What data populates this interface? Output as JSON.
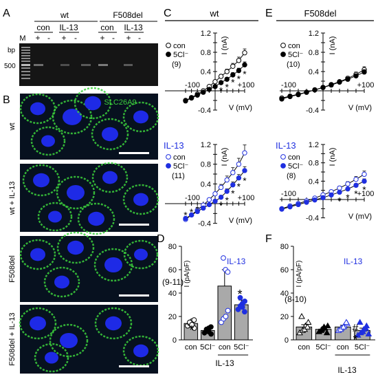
{
  "panels": {
    "A": {
      "letter": "A",
      "groups": [
        {
          "name": "wt",
          "conditions": [
            {
              "label": "con",
              "signs": [
                "+",
                "-"
              ]
            },
            {
              "label": "IL-13",
              "signs": [
                "+",
                "-"
              ]
            }
          ]
        },
        {
          "name": "F508del",
          "conditions": [
            {
              "label": "con",
              "signs": [
                "+",
                "-"
              ]
            },
            {
              "label": "IL-13",
              "signs": [
                "+",
                "-"
              ]
            }
          ]
        }
      ],
      "marker_label": "M",
      "bp_label": "bp",
      "size_label": "500"
    },
    "B": {
      "letter": "B",
      "stain": "SLC26A9",
      "stain_color": "#3cd13c",
      "images": [
        {
          "label": "wt"
        },
        {
          "label": "wt + IL-13"
        },
        {
          "label": "F508del"
        },
        {
          "label": "F508del + IL-13"
        }
      ]
    },
    "C": {
      "letter": "C",
      "title": "wt"
    },
    "D": {
      "letter": "D",
      "n_label": "(9-11)",
      "il13_label": "IL-13",
      "bracket_label": "IL-13",
      "star": "*"
    },
    "E": {
      "letter": "E",
      "title": "F508del"
    },
    "F": {
      "letter": "F",
      "n_label": "(8-10)",
      "il13_label": "IL-13",
      "bracket_label": "IL-13",
      "hash": "#",
      "star": "*"
    }
  },
  "colors": {
    "black": "#000000",
    "blue": "#1f2fe0",
    "gray": "#a9a9a9",
    "white": "#ffffff"
  },
  "chart_data": [
    {
      "id": "C-top",
      "type": "line",
      "xlabel": "V (mV)",
      "ylabel": "I (nA)",
      "xlim": [
        -100,
        100
      ],
      "ylim": [
        -0.4,
        1.2
      ],
      "x_ticks": [
        -100,
        100
      ],
      "y_ticks": [
        -0.4,
        0.4,
        0.8,
        1.2
      ],
      "legend": [
        {
          "label": "con",
          "marker": "open"
        },
        {
          "label": "5Cl⁻",
          "marker": "filled"
        }
      ],
      "n_label": "(9)",
      "series": [
        {
          "name": "con",
          "marker": "open",
          "color": "#000000",
          "x": [
            -100,
            -80,
            -60,
            -40,
            -20,
            0,
            20,
            40,
            60,
            80,
            100
          ],
          "y": [
            -0.2,
            -0.14,
            -0.07,
            0.0,
            0.09,
            0.19,
            0.3,
            0.4,
            0.51,
            0.63,
            0.79
          ],
          "err": [
            0.02,
            0.02,
            0.02,
            0.02,
            0.03,
            0.03,
            0.04,
            0.05,
            0.06,
            0.07,
            0.08
          ]
        },
        {
          "name": "5Cl⁻",
          "marker": "filled",
          "color": "#000000",
          "x": [
            -100,
            -80,
            -60,
            -40,
            -20,
            0,
            20,
            40,
            60,
            80,
            100
          ],
          "y": [
            -0.21,
            -0.15,
            -0.09,
            -0.03,
            0.03,
            0.09,
            0.17,
            0.24,
            0.33,
            0.42,
            0.54
          ],
          "err": [
            0.02,
            0.02,
            0.02,
            0.02,
            0.02,
            0.03,
            0.03,
            0.04,
            0.05,
            0.05,
            0.06
          ]
        }
      ],
      "stars": [
        {
          "x": 20,
          "y": 0.08,
          "label": "*"
        },
        {
          "x": 40,
          "y": 0.15,
          "label": "*"
        },
        {
          "x": 60,
          "y": 0.25,
          "label": "*"
        },
        {
          "x": 80,
          "y": 0.32,
          "label": "*"
        },
        {
          "x": 100,
          "y": 0.42,
          "label": "*"
        }
      ]
    },
    {
      "id": "C-bottom",
      "type": "line",
      "xlabel": "V (mV)",
      "ylabel": "I (nA)",
      "xlim": [
        -100,
        100
      ],
      "ylim": [
        -0.4,
        1.2
      ],
      "x_ticks": [
        -100,
        100
      ],
      "y_ticks": [
        -0.4,
        0.4,
        0.8,
        1.2
      ],
      "title": "IL-13",
      "legend": [
        {
          "label": "con",
          "marker": "open"
        },
        {
          "label": "5Cl⁻",
          "marker": "filled"
        }
      ],
      "n_label": "(11)",
      "series": [
        {
          "name": "con",
          "marker": "open",
          "color": "#1f2fe0",
          "x": [
            -100,
            -80,
            -60,
            -40,
            -20,
            0,
            20,
            40,
            60,
            80,
            100
          ],
          "y": [
            -0.32,
            -0.23,
            -0.13,
            -0.03,
            0.08,
            0.2,
            0.33,
            0.48,
            0.63,
            0.8,
            1.03
          ],
          "err": [
            0.03,
            0.03,
            0.03,
            0.03,
            0.04,
            0.05,
            0.06,
            0.08,
            0.1,
            0.12,
            0.16
          ]
        },
        {
          "name": "5Cl⁻",
          "marker": "filled",
          "color": "#1f2fe0",
          "x": [
            -100,
            -80,
            -60,
            -40,
            -20,
            0,
            20,
            40,
            60,
            80,
            100
          ],
          "y": [
            -0.3,
            -0.23,
            -0.16,
            -0.09,
            -0.02,
            0.05,
            0.13,
            0.25,
            0.38,
            0.52,
            0.67
          ],
          "err": [
            0.03,
            0.03,
            0.03,
            0.03,
            0.03,
            0.03,
            0.04,
            0.05,
            0.06,
            0.07,
            0.08
          ]
        }
      ],
      "stars": [
        {
          "x": -100,
          "y": -0.16,
          "label": "*"
        },
        {
          "x": -80,
          "y": -0.1,
          "label": "*"
        },
        {
          "x": -60,
          "y": -0.04,
          "label": "*"
        },
        {
          "x": 20,
          "y": 0.04,
          "label": "*"
        },
        {
          "x": 40,
          "y": 0.14,
          "label": "*"
        },
        {
          "x": 60,
          "y": 0.28,
          "label": "*"
        },
        {
          "x": 80,
          "y": 0.42,
          "label": "*"
        },
        {
          "x": 100,
          "y": 0.54,
          "label": "*"
        }
      ]
    },
    {
      "id": "E-top",
      "type": "line",
      "xlabel": "V (mV)",
      "ylabel": "I (nA)",
      "xlim": [
        -100,
        100
      ],
      "ylim": [
        -0.4,
        1.2
      ],
      "x_ticks": [
        -100,
        100
      ],
      "y_ticks": [
        -0.4,
        0.4,
        0.8,
        1.2
      ],
      "legend": [
        {
          "label": "con",
          "marker": "open"
        },
        {
          "label": "5Cl⁻",
          "marker": "filled"
        }
      ],
      "n_label": "(10)",
      "series": [
        {
          "name": "con",
          "marker": "open",
          "color": "#000000",
          "x": [
            -100,
            -80,
            -60,
            -40,
            -20,
            0,
            20,
            40,
            60,
            80,
            100
          ],
          "y": [
            -0.15,
            -0.11,
            -0.07,
            -0.03,
            0.02,
            0.07,
            0.13,
            0.19,
            0.26,
            0.34,
            0.44
          ],
          "err": [
            0.02,
            0.02,
            0.02,
            0.02,
            0.02,
            0.02,
            0.03,
            0.03,
            0.04,
            0.05,
            0.06
          ]
        },
        {
          "name": "5Cl⁻",
          "marker": "filled",
          "color": "#000000",
          "x": [
            -100,
            -80,
            -60,
            -40,
            -20,
            0,
            20,
            40,
            60,
            80,
            100
          ],
          "y": [
            -0.17,
            -0.12,
            -0.08,
            -0.03,
            0.02,
            0.07,
            0.12,
            0.18,
            0.24,
            0.31,
            0.39
          ],
          "err": [
            0.02,
            0.02,
            0.02,
            0.02,
            0.02,
            0.02,
            0.03,
            0.03,
            0.04,
            0.04,
            0.05
          ]
        }
      ],
      "stars": []
    },
    {
      "id": "E-bottom",
      "type": "line",
      "xlabel": "V (mV)",
      "ylabel": "I (nA)",
      "xlim": [
        -100,
        100
      ],
      "ylim": [
        -0.4,
        1.2
      ],
      "x_ticks": [
        -100,
        100
      ],
      "y_ticks": [
        -0.4,
        0.4,
        0.8,
        1.2
      ],
      "title": "IL-13",
      "legend": [
        {
          "label": "con",
          "marker": "open"
        },
        {
          "label": "5Cl⁻",
          "marker": "filled"
        }
      ],
      "n_label": "(8)",
      "series": [
        {
          "name": "con",
          "marker": "open",
          "color": "#1f2fe0",
          "x": [
            -100,
            -80,
            -60,
            -40,
            -20,
            0,
            20,
            40,
            60,
            80,
            100
          ],
          "y": [
            -0.2,
            -0.14,
            -0.09,
            -0.03,
            0.03,
            0.1,
            0.17,
            0.25,
            0.34,
            0.44,
            0.55
          ],
          "err": [
            0.02,
            0.02,
            0.02,
            0.02,
            0.02,
            0.03,
            0.03,
            0.04,
            0.05,
            0.06,
            0.07
          ]
        },
        {
          "name": "5Cl⁻",
          "marker": "filled",
          "color": "#1f2fe0",
          "x": [
            -100,
            -80,
            -60,
            -40,
            -20,
            0,
            20,
            40,
            60,
            80,
            100
          ],
          "y": [
            -0.21,
            -0.16,
            -0.11,
            -0.06,
            -0.01,
            0.04,
            0.1,
            0.16,
            0.23,
            0.31,
            0.4
          ],
          "err": [
            0.02,
            0.02,
            0.02,
            0.02,
            0.02,
            0.02,
            0.03,
            0.03,
            0.04,
            0.04,
            0.05
          ]
        }
      ],
      "stars": [
        {
          "x": 40,
          "y": 0.05,
          "label": "*"
        },
        {
          "x": 60,
          "y": 0.12,
          "label": "*"
        },
        {
          "x": 80,
          "y": 0.2,
          "label": "*"
        },
        {
          "x": 100,
          "y": 0.29,
          "label": "*"
        }
      ]
    },
    {
      "id": "D",
      "type": "bar",
      "ylabel": "I (pA/pF)",
      "ylim": [
        0,
        80
      ],
      "y_ticks": [
        0,
        20,
        40,
        60,
        80
      ],
      "categories": [
        "con",
        "5Cl⁻",
        "con",
        "5Cl⁻"
      ],
      "values": [
        14,
        8,
        46,
        30
      ],
      "errors": [
        2,
        2,
        14,
        4
      ],
      "points": [
        [
          12,
          14,
          16,
          10,
          15,
          13,
          17
        ],
        [
          6,
          8,
          10,
          5,
          9,
          7,
          11
        ],
        [
          15,
          18,
          20,
          25,
          70,
          60,
          58
        ],
        [
          26,
          29,
          31,
          33,
          36,
          28,
          24
        ]
      ],
      "point_marker": [
        "open-circle",
        "filled-circle",
        "open-circle",
        "filled-circle"
      ],
      "point_color": [
        "#000000",
        "#000000",
        "#1f2fe0",
        "#1f2fe0"
      ]
    },
    {
      "id": "F",
      "type": "bar",
      "ylabel": "I (pA/pF)",
      "ylim": [
        0,
        80
      ],
      "y_ticks": [
        0,
        20,
        40,
        60,
        80
      ],
      "categories": [
        "con",
        "5Cl⁻",
        "con",
        "5Cl⁻"
      ],
      "values": [
        11,
        9,
        11,
        8
      ],
      "errors": [
        2,
        1.5,
        1.5,
        2
      ],
      "points": [
        [
          6,
          8,
          12,
          15,
          20,
          9,
          11
        ],
        [
          7,
          9,
          10,
          12,
          8,
          11,
          6
        ],
        [
          8,
          10,
          12,
          14,
          9,
          11,
          15
        ],
        [
          4,
          6,
          9,
          12,
          15,
          7,
          10,
          5
        ]
      ],
      "point_marker": [
        "open-triangle",
        "filled-triangle",
        "open-triangle",
        "filled-triangle"
      ],
      "point_color": [
        "#000000",
        "#000000",
        "#1f2fe0",
        "#1f2fe0"
      ]
    }
  ]
}
